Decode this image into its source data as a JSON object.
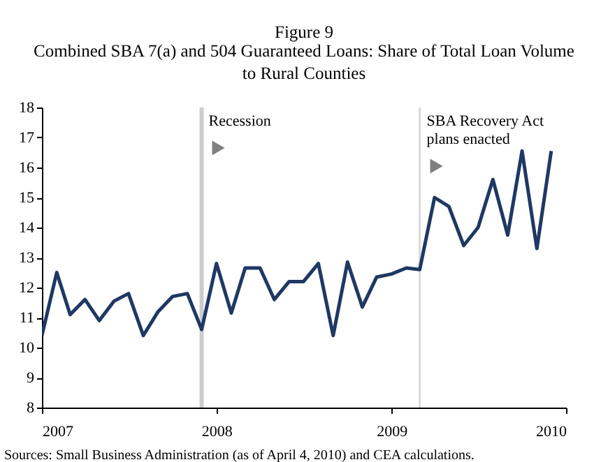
{
  "chart_data": {
    "type": "line",
    "title": "Figure 9",
    "subtitle": "Combined SBA 7(a) and 504 Guaranteed Loans: Share of Total Loan Volume to Rural Counties",
    "x": [
      "2007-01",
      "2007-02",
      "2007-03",
      "2007-04",
      "2007-05",
      "2007-06",
      "2007-07",
      "2007-08",
      "2007-09",
      "2007-10",
      "2007-11",
      "2007-12",
      "2008-01",
      "2008-02",
      "2008-03",
      "2008-04",
      "2008-05",
      "2008-06",
      "2008-07",
      "2008-08",
      "2008-09",
      "2008-10",
      "2008-11",
      "2008-12",
      "2009-01",
      "2009-02",
      "2009-03",
      "2009-04",
      "2009-05",
      "2009-06",
      "2009-07",
      "2009-08",
      "2009-09",
      "2009-10",
      "2009-11",
      "2009-12"
    ],
    "series": [
      {
        "color": "#1f3864",
        "values": [
          10.4,
          12.5,
          11.1,
          11.6,
          10.9,
          11.55,
          11.8,
          10.4,
          11.2,
          11.7,
          11.8,
          10.6,
          12.8,
          11.15,
          12.65,
          12.65,
          11.6,
          12.2,
          12.2,
          12.8,
          10.4,
          12.85,
          11.35,
          12.35,
          12.45,
          12.65,
          12.6,
          15.0,
          14.7,
          13.4,
          14.0,
          15.6,
          13.75,
          16.55,
          13.3,
          16.55
        ]
      }
    ],
    "xlim": [
      "2007-01",
      "2010-01"
    ],
    "xticks": [
      "2007",
      "2008",
      "2009",
      "2010"
    ],
    "ylim": [
      8,
      18
    ],
    "yticks": [
      8,
      9,
      10,
      11,
      12,
      13,
      14,
      15,
      16,
      17,
      18
    ],
    "ref_lines": [
      {
        "axis": "x",
        "value": "2007-12",
        "label": "Recession",
        "color": "#cccccc"
      },
      {
        "axis": "x",
        "value": "2009-03",
        "label": "SBA Recovery Act plans enacted",
        "color": "#d9d9d9"
      }
    ],
    "annotations": [
      "Sources: Small Business Administration (as of April 4, 2010) and CEA calculations."
    ],
    "grid": false
  }
}
